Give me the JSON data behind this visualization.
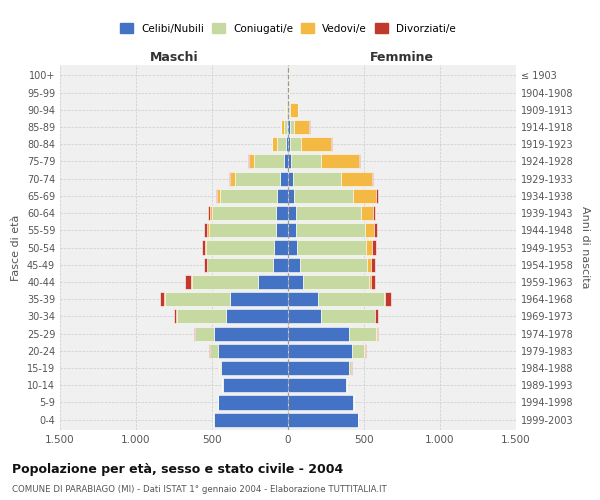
{
  "age_groups": [
    "0-4",
    "5-9",
    "10-14",
    "15-19",
    "20-24",
    "25-29",
    "30-34",
    "35-39",
    "40-44",
    "45-49",
    "50-54",
    "55-59",
    "60-64",
    "65-69",
    "70-74",
    "75-79",
    "80-84",
    "85-89",
    "90-94",
    "95-99",
    "100+"
  ],
  "birth_years": [
    "1999-2003",
    "1994-1998",
    "1989-1993",
    "1984-1988",
    "1979-1983",
    "1974-1978",
    "1969-1973",
    "1964-1968",
    "1959-1963",
    "1954-1958",
    "1949-1953",
    "1944-1948",
    "1939-1943",
    "1934-1938",
    "1929-1933",
    "1924-1928",
    "1919-1923",
    "1914-1918",
    "1909-1913",
    "1904-1908",
    "≤ 1903"
  ],
  "colors": {
    "celibi": "#4472c4",
    "coniugati": "#c5d9a0",
    "vedovi": "#f4b942",
    "divorziati": "#c0392b"
  },
  "maschi": {
    "celibi": [
      490,
      460,
      430,
      440,
      460,
      490,
      410,
      380,
      200,
      100,
      90,
      80,
      80,
      70,
      50,
      25,
      15,
      8,
      4,
      2,
      2
    ],
    "coniugati": [
      2,
      2,
      5,
      10,
      50,
      120,
      320,
      430,
      430,
      430,
      450,
      440,
      420,
      380,
      300,
      200,
      60,
      20,
      5,
      0,
      0
    ],
    "vedovi": [
      0,
      0,
      0,
      2,
      5,
      5,
      5,
      5,
      5,
      5,
      5,
      10,
      15,
      20,
      30,
      30,
      30,
      15,
      5,
      0,
      0
    ],
    "divorziati": [
      0,
      0,
      0,
      2,
      5,
      5,
      15,
      30,
      40,
      20,
      20,
      20,
      10,
      5,
      5,
      5,
      0,
      0,
      0,
      0,
      0
    ]
  },
  "femmine": {
    "celibi": [
      460,
      430,
      380,
      400,
      420,
      400,
      220,
      200,
      100,
      80,
      60,
      55,
      50,
      40,
      30,
      20,
      15,
      10,
      5,
      2,
      2
    ],
    "coniugati": [
      2,
      2,
      5,
      15,
      80,
      180,
      350,
      430,
      430,
      440,
      450,
      450,
      430,
      390,
      320,
      200,
      70,
      30,
      10,
      0,
      0
    ],
    "vedovi": [
      0,
      0,
      0,
      2,
      5,
      5,
      5,
      10,
      15,
      25,
      40,
      60,
      80,
      150,
      200,
      250,
      200,
      100,
      50,
      5,
      2
    ],
    "divorziati": [
      0,
      0,
      0,
      2,
      5,
      10,
      20,
      40,
      30,
      30,
      30,
      20,
      10,
      10,
      10,
      5,
      5,
      5,
      0,
      0,
      0
    ]
  },
  "xlim": 1500,
  "title": "Popolazione per età, sesso e stato civile - 2004",
  "subtitle": "COMUNE DI PARABIAGO (MI) - Dati ISTAT 1° gennaio 2004 - Elaborazione TUTTITALIA.IT",
  "ylabel": "Fasce di età",
  "ylabel_right": "Anni di nascita",
  "xlabel_left": "Maschi",
  "xlabel_right": "Femmine",
  "bg_color": "#f0f0f0",
  "grid_color": "#cccccc"
}
